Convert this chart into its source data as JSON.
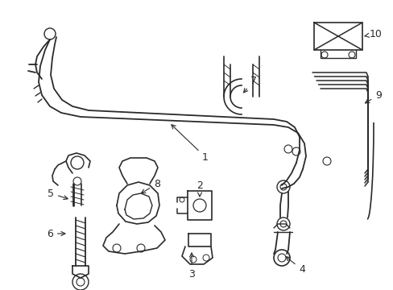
{
  "bg_color": "#ffffff",
  "line_color": "#2a2a2a",
  "fig_width": 4.89,
  "fig_height": 3.6,
  "dpi": 100,
  "xlim": [
    0,
    489
  ],
  "ylim": [
    0,
    360
  ]
}
